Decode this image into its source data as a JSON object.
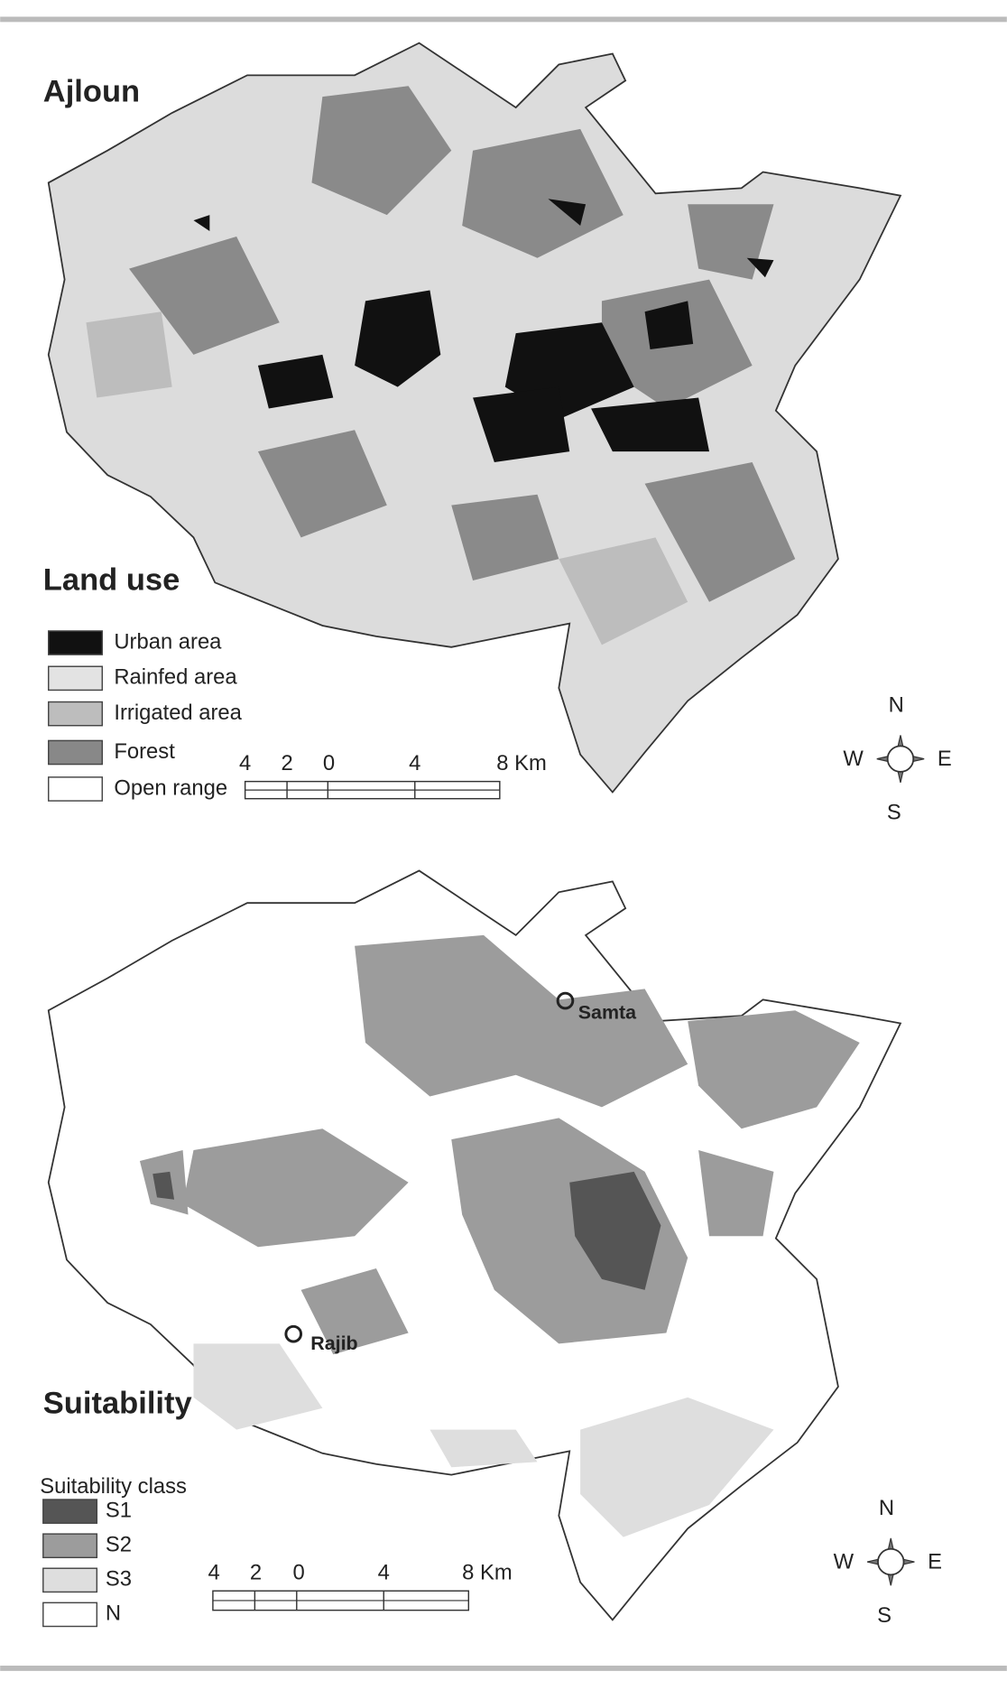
{
  "maps": [
    {
      "title": "Ajloun",
      "subtitle": "Land use",
      "legend": [
        {
          "label": "Urban area",
          "color": "#111111"
        },
        {
          "label": "Rainfed area",
          "color": "#e3e3e3"
        },
        {
          "label": "Irrigated area",
          "color": "#bdbdbd"
        },
        {
          "label": "Forest",
          "color": "#888888"
        },
        {
          "label": "Open range",
          "color": "#ffffff"
        }
      ],
      "scale_bar": [
        "4",
        "2",
        "0",
        "4",
        "8 Km"
      ],
      "compass": {
        "n": "N",
        "w": "W",
        "e": "E",
        "s": "S"
      }
    },
    {
      "title": "Suitability",
      "legend_title": "Suitability class",
      "legend": [
        {
          "label": "S1",
          "color": "#555555"
        },
        {
          "label": "S2",
          "color": "#9c9c9c"
        },
        {
          "label": "S3",
          "color": "#dedede"
        },
        {
          "label": "N",
          "color": "#ffffff"
        }
      ],
      "places": [
        "Samta",
        "Rajib"
      ],
      "scale_bar": [
        "4",
        "2",
        "0",
        "4",
        "8 Km"
      ],
      "compass": {
        "n": "N",
        "w": "W",
        "e": "E",
        "s": "S"
      }
    }
  ]
}
